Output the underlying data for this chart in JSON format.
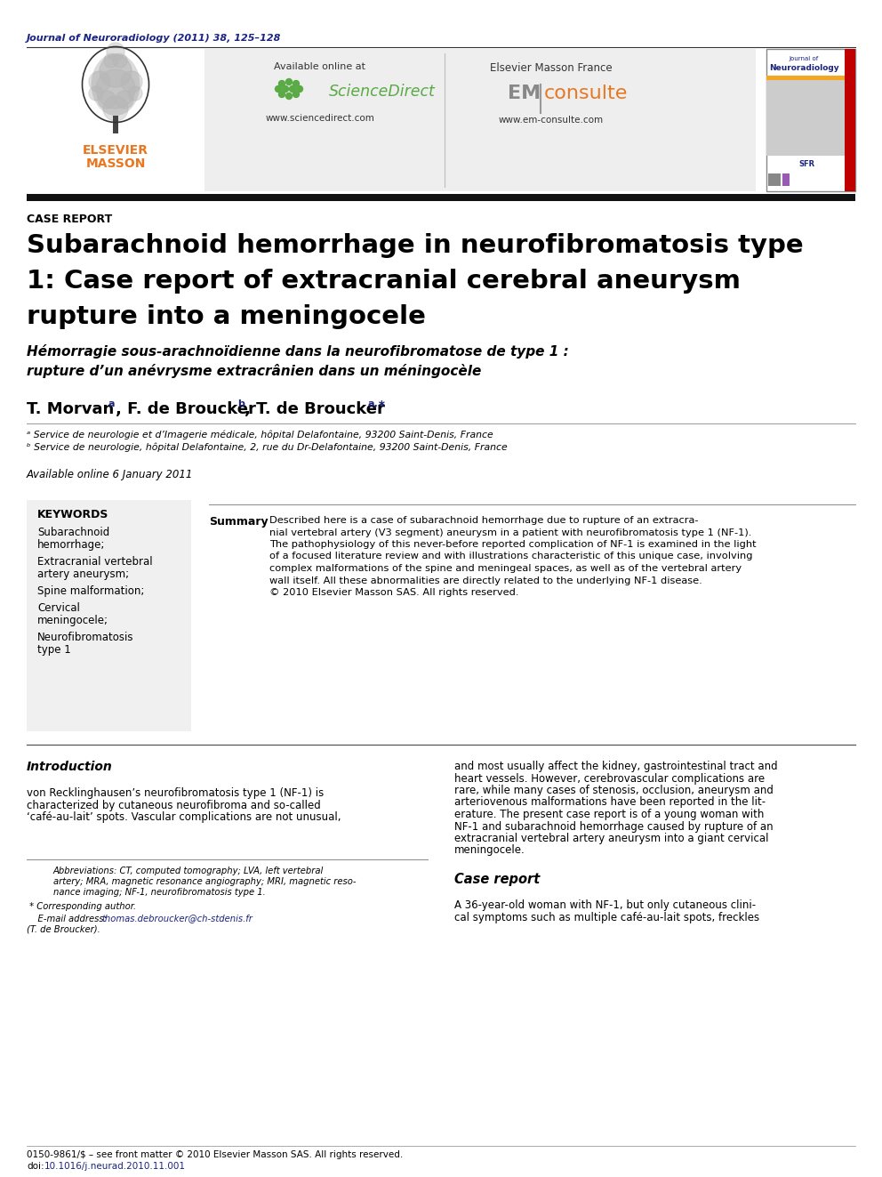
{
  "journal_ref": "Journal of Neuroradiology (2011) 38, 125–128",
  "journal_ref_color": "#1a237e",
  "case_report_label": "CASE REPORT",
  "title_en_line1": "Subarachnoid hemorrhage in neurofibromatosis type",
  "title_en_line2": "1: Case report of extracranial cerebral aneurysm",
  "title_en_line3": "rupture into a meningocele",
  "title_fr_line1": "Hémorragie sous-arachnoïdienne dans la neurofibromatose de type 1 :",
  "title_fr_line2": "rupture d’un anévrysme extracrânien dans un méningocèle",
  "author1": "T. Morvan",
  "author1_sup": "a",
  "author2": ", F. de Broucker",
  "author2_sup": "b",
  "author3": ", T. de Broucker",
  "author3_sup": "a,∗",
  "affil_a": "ᵃ Service de neurologie et d’Imagerie médicale, hôpital Delafontaine, 93200 Saint-Denis, France",
  "affil_b": "ᵇ Service de neurologie, hôpital Delafontaine, 2, rue du Dr-Delafontaine, 93200 Saint-Denis, France",
  "available_online": "Available online 6 January 2011",
  "keywords_title": "KEYWORDS",
  "keywords": [
    "Subarachnoid\nhemorrhage;",
    "Extracranial vertebral\nartery aneurysm;",
    "Spine malformation;",
    "Cervical\nmeningocele;",
    "Neurofibromatosis\ntype 1"
  ],
  "summary_label": "Summary",
  "summary_line1": "Described here is a case of subarachnoid hemorrhage due to rupture of an extracra-",
  "summary_line2": "nial vertebral artery (V3 segment) aneurysm in a patient with neurofibromatosis type 1 (NF-1).",
  "summary_line3": "The pathophysiology of this never-before reported complication of NF-1 is examined in the light",
  "summary_line4": "of a focused literature review and with illustrations characteristic of this unique case, involving",
  "summary_line5": "complex malformations of the spine and meningeal spaces, as well as of the vertebral artery",
  "summary_line6": "wall itself. All these abnormalities are directly related to the underlying NF-1 disease.",
  "summary_line7": "© 2010 Elsevier Masson SAS. All rights reserved.",
  "intro_title": "Introduction",
  "intro_left1": "von Recklinghausen’s neurofibromatosis type 1 (NF-1) is",
  "intro_left2": "characterized by cutaneous neurofibroma and so-called",
  "intro_left3": "‘café-au-lait’ spots. Vascular complications are not unusual,",
  "intro_right1": "and most usually affect the kidney, gastrointestinal tract and",
  "intro_right2": "heart vessels. However, cerebrovascular complications are",
  "intro_right3": "rare, while many cases of stenosis, occlusion, aneurysm and",
  "intro_right4": "arteriovenous malformations have been reported in the lit-",
  "intro_right5": "erature. The present case report is of a young woman with",
  "intro_right6": "NF-1 and subarachnoid hemorrhage caused by rupture of an",
  "intro_right7": "extracranial vertebral artery aneurysm into a giant cervical",
  "intro_right8": "meningocele.",
  "case_title": "Case report",
  "case_text1": "A 36-year-old woman with NF-1, but only cutaneous clini-",
  "case_text2": "cal symptoms such as multiple café-au-lait spots, freckles",
  "fn_line1": "Abbreviations: CT, computed tomography; LVA, left vertebral",
  "fn_line2": "artery; MRA, magnetic resonance angiography; MRI, magnetic reso-",
  "fn_line3": "nance imaging; NF-1, neurofibromatosis type 1.",
  "fn_corresp": " * Corresponding author.",
  "fn_email1": "    E-mail address: thomas.debroucker@ch-stdenis.fr",
  "fn_email2": "(T. de Broucker).",
  "fn_email_color": "#1a237e",
  "footer1": "0150-9861/$ – see front matter © 2010 Elsevier Masson SAS. All rights reserved.",
  "footer2": "doi:10.1016/j.neurad.2010.11.001",
  "footer2_color": "#1a237e",
  "elsevier_orange": "#e87722",
  "dark_navy": "#1a237e",
  "scidir_green": "#5aaa46",
  "em_gray": "#888888",
  "bg_color": "#ffffff",
  "header_bg": "#eeeeee",
  "kw_bg": "#f0f0f0",
  "black": "#000000"
}
